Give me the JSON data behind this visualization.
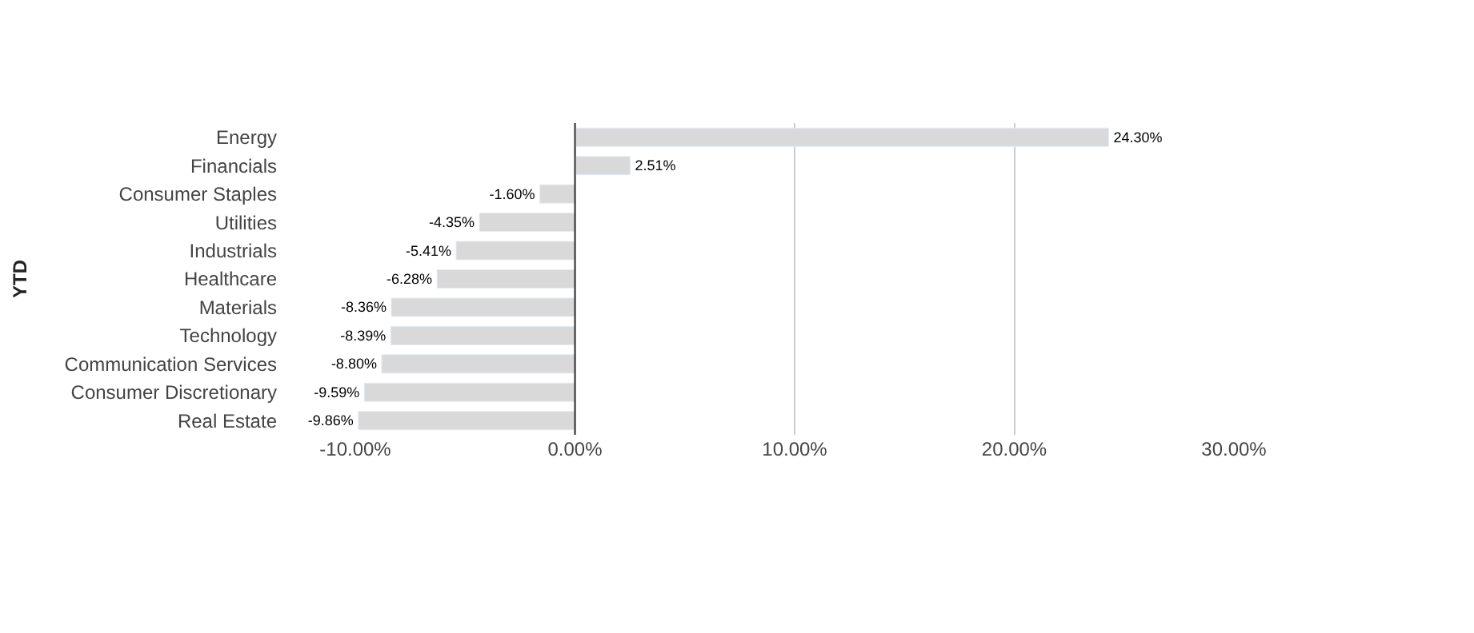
{
  "chart_data": {
    "type": "bar",
    "orientation": "horizontal",
    "ylabel": "YTD",
    "categories": [
      "Energy",
      "Financials",
      "Consumer Staples",
      "Utilities",
      "Industrials",
      "Healthcare",
      "Materials",
      "Technology",
      "Communication Services",
      "Consumer Discretionary",
      "Real Estate"
    ],
    "values": [
      24.3,
      2.51,
      -1.6,
      -4.35,
      -5.41,
      -6.28,
      -8.36,
      -8.39,
      -8.8,
      -9.59,
      -9.86
    ],
    "value_labels": [
      "24.30%",
      "2.51%",
      "-1.60%",
      "-4.35%",
      "-5.41%",
      "-6.28%",
      "-8.36%",
      "-8.39%",
      "-8.80%",
      "-9.59%",
      "-9.86%"
    ],
    "color": "#d9d9d9",
    "xlim": [
      -10,
      30
    ],
    "xticks": [
      {
        "value": -10,
        "label": "-10.00%"
      },
      {
        "value": 0,
        "label": "0.00%"
      },
      {
        "value": 10,
        "label": "10.00%"
      },
      {
        "value": 20,
        "label": "20.00%"
      },
      {
        "value": 30,
        "label": "30.00%"
      }
    ],
    "ref_lines": [
      {
        "axis": "x",
        "value": 0,
        "color": "#333333"
      }
    ],
    "grid": "x",
    "legend": false
  }
}
